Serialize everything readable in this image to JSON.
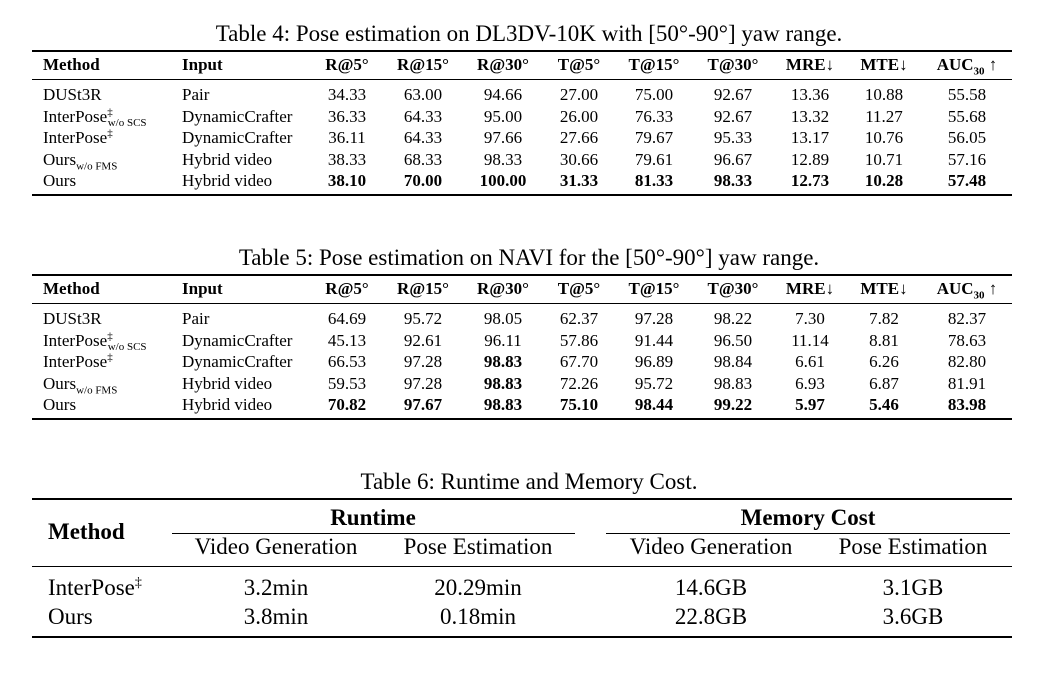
{
  "table4": {
    "caption": "Table 4: Pose estimation on DL3DV-10K with [50°-90°] yaw range.",
    "headers": [
      "Method",
      "Input",
      "R@5°",
      "R@15°",
      "R@30°",
      "T@5°",
      "T@15°",
      "T@30°",
      "MRE↓",
      "MTE↓",
      "AUC",
      "30",
      "↑"
    ],
    "rows": [
      {
        "method": "DUSt3R",
        "sup": "",
        "sub": "",
        "input": "Pair",
        "vals": [
          "34.33",
          "63.00",
          "94.66",
          "27.00",
          "75.00",
          "92.67",
          "13.36",
          "10.88",
          "55.58"
        ]
      },
      {
        "method": "InterPose",
        "sup": "‡",
        "sub": "w/o SCS",
        "input": "DynamicCrafter",
        "vals": [
          "36.33",
          "64.33",
          "95.00",
          "26.00",
          "76.33",
          "92.67",
          "13.32",
          "11.27",
          "55.68"
        ]
      },
      {
        "method": "InterPose",
        "sup": "‡",
        "sub": "",
        "input": "DynamicCrafter",
        "vals": [
          "36.11",
          "64.33",
          "97.66",
          "27.66",
          "79.67",
          "95.33",
          "13.17",
          "10.76",
          "56.05"
        ]
      },
      {
        "method": "Ours",
        "sup": "",
        "sub": "w/o FMS",
        "input": "Hybrid video",
        "vals": [
          "38.33",
          "68.33",
          "98.33",
          "30.66",
          "79.61",
          "96.67",
          "12.89",
          "10.71",
          "57.16"
        ]
      },
      {
        "method": "Ours",
        "sup": "",
        "sub": "",
        "input": "Hybrid video",
        "vals": [
          "38.10",
          "70.00",
          "100.00",
          "31.33",
          "81.33",
          "98.33",
          "12.73",
          "10.28",
          "57.48"
        ]
      }
    ]
  },
  "table5": {
    "caption": "Table 5: Pose estimation on NAVI for the [50°-90°] yaw range.",
    "headers": [
      "Method",
      "Input",
      "R@5°",
      "R@15°",
      "R@30°",
      "T@5°",
      "T@15°",
      "T@30°",
      "MRE↓",
      "MTE↓",
      "AUC",
      "30",
      "↑"
    ],
    "rows": [
      {
        "method": "DUSt3R",
        "sup": "",
        "sub": "",
        "input": "Pair",
        "vals": [
          "64.69",
          "95.72",
          "98.05",
          "62.37",
          "97.28",
          "98.22",
          "7.30",
          "7.82",
          "82.37"
        ]
      },
      {
        "method": "InterPose",
        "sup": "‡",
        "sub": "w/o SCS",
        "input": "DynamicCrafter",
        "vals": [
          "45.13",
          "92.61",
          "96.11",
          "57.86",
          "91.44",
          "96.50",
          "11.14",
          "8.81",
          "78.63"
        ]
      },
      {
        "method": "InterPose",
        "sup": "‡",
        "sub": "",
        "input": "DynamicCrafter",
        "vals": [
          "66.53",
          "97.28",
          "98.83",
          "67.70",
          "96.89",
          "98.84",
          "6.61",
          "6.26",
          "82.80"
        ]
      },
      {
        "method": "Ours",
        "sup": "",
        "sub": "w/o FMS",
        "input": "Hybrid video",
        "vals": [
          "59.53",
          "97.28",
          "98.83",
          "72.26",
          "95.72",
          "98.83",
          "6.93",
          "6.87",
          "81.91"
        ]
      },
      {
        "method": "Ours",
        "sup": "",
        "sub": "",
        "input": "Hybrid video",
        "vals": [
          "70.82",
          "97.67",
          "98.83",
          "75.10",
          "98.44",
          "99.22",
          "5.97",
          "5.46",
          "83.98"
        ]
      }
    ]
  },
  "table6": {
    "caption": "Table 6: Runtime and Memory Cost.",
    "method_header": "Method",
    "group_runtime": "Runtime",
    "group_memory": "Memory Cost",
    "sub_headers": [
      "Video Generation",
      "Pose Estimation",
      "Video Generation",
      "Pose Estimation"
    ],
    "rows": [
      {
        "method": "InterPose",
        "sup": "‡",
        "vals": [
          "3.2min",
          "20.29min",
          "14.6GB",
          "3.1GB"
        ]
      },
      {
        "method": "Ours",
        "sup": "",
        "vals": [
          "3.8min",
          "0.18min",
          "22.8GB",
          "3.6GB"
        ]
      }
    ]
  }
}
